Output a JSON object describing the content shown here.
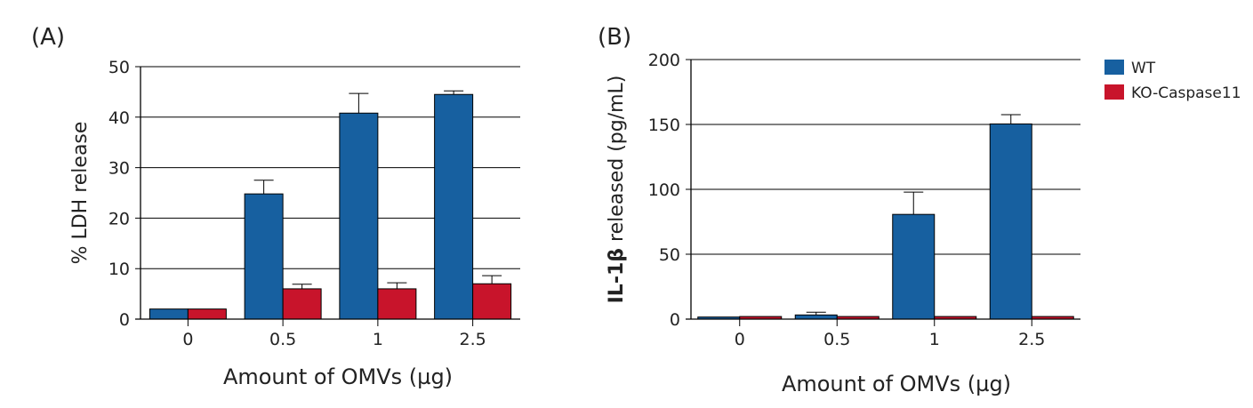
{
  "colors": {
    "WT": "#1760a0",
    "KO-Caspase11": "#c8142b",
    "axis": "#000000"
  },
  "legend": {
    "placement": "right of panel B",
    "items": [
      "WT",
      "KO-Caspase11"
    ]
  },
  "chart_data": [
    {
      "type": "bar",
      "panel_label": "(A)",
      "categories": [
        "0",
        "0.5",
        "1",
        "2.5"
      ],
      "xlabel": "Amount of OMVs (µg)",
      "ylabel": "% LDH release",
      "ylim": [
        0,
        50
      ],
      "yticks": [
        "0",
        "10",
        "20",
        "30",
        "40",
        "50"
      ],
      "grid": true,
      "series": [
        {
          "name": "WT",
          "values": [
            2,
            24.8,
            40.8,
            44.5
          ],
          "error_upper": [
            2,
            27.5,
            44.7,
            45.2
          ]
        },
        {
          "name": "KO-Caspase11",
          "values": [
            2,
            6.0,
            6.0,
            7.0
          ],
          "error_upper": [
            2,
            6.9,
            7.2,
            8.6
          ]
        }
      ]
    },
    {
      "type": "bar",
      "panel_label": "(B)",
      "categories": [
        "0",
        "0.5",
        "1",
        "2.5"
      ],
      "xlabel": "Amount of OMVs (µg)",
      "ylabel_bold": "IL-1β",
      "ylabel_rest": " released (pg/mL)",
      "ylim": [
        0,
        200
      ],
      "yticks": [
        "0",
        "50",
        "100",
        "150",
        "200"
      ],
      "grid": true,
      "series": [
        {
          "name": "WT",
          "values": [
            1.6,
            3.2,
            80.7,
            150.4
          ],
          "error_upper": [
            1.6,
            5.3,
            97.9,
            157.5
          ]
        },
        {
          "name": "KO-Caspase11",
          "values": [
            2,
            2,
            2,
            2
          ],
          "error_upper": [
            2,
            2,
            2,
            2
          ]
        }
      ]
    }
  ]
}
